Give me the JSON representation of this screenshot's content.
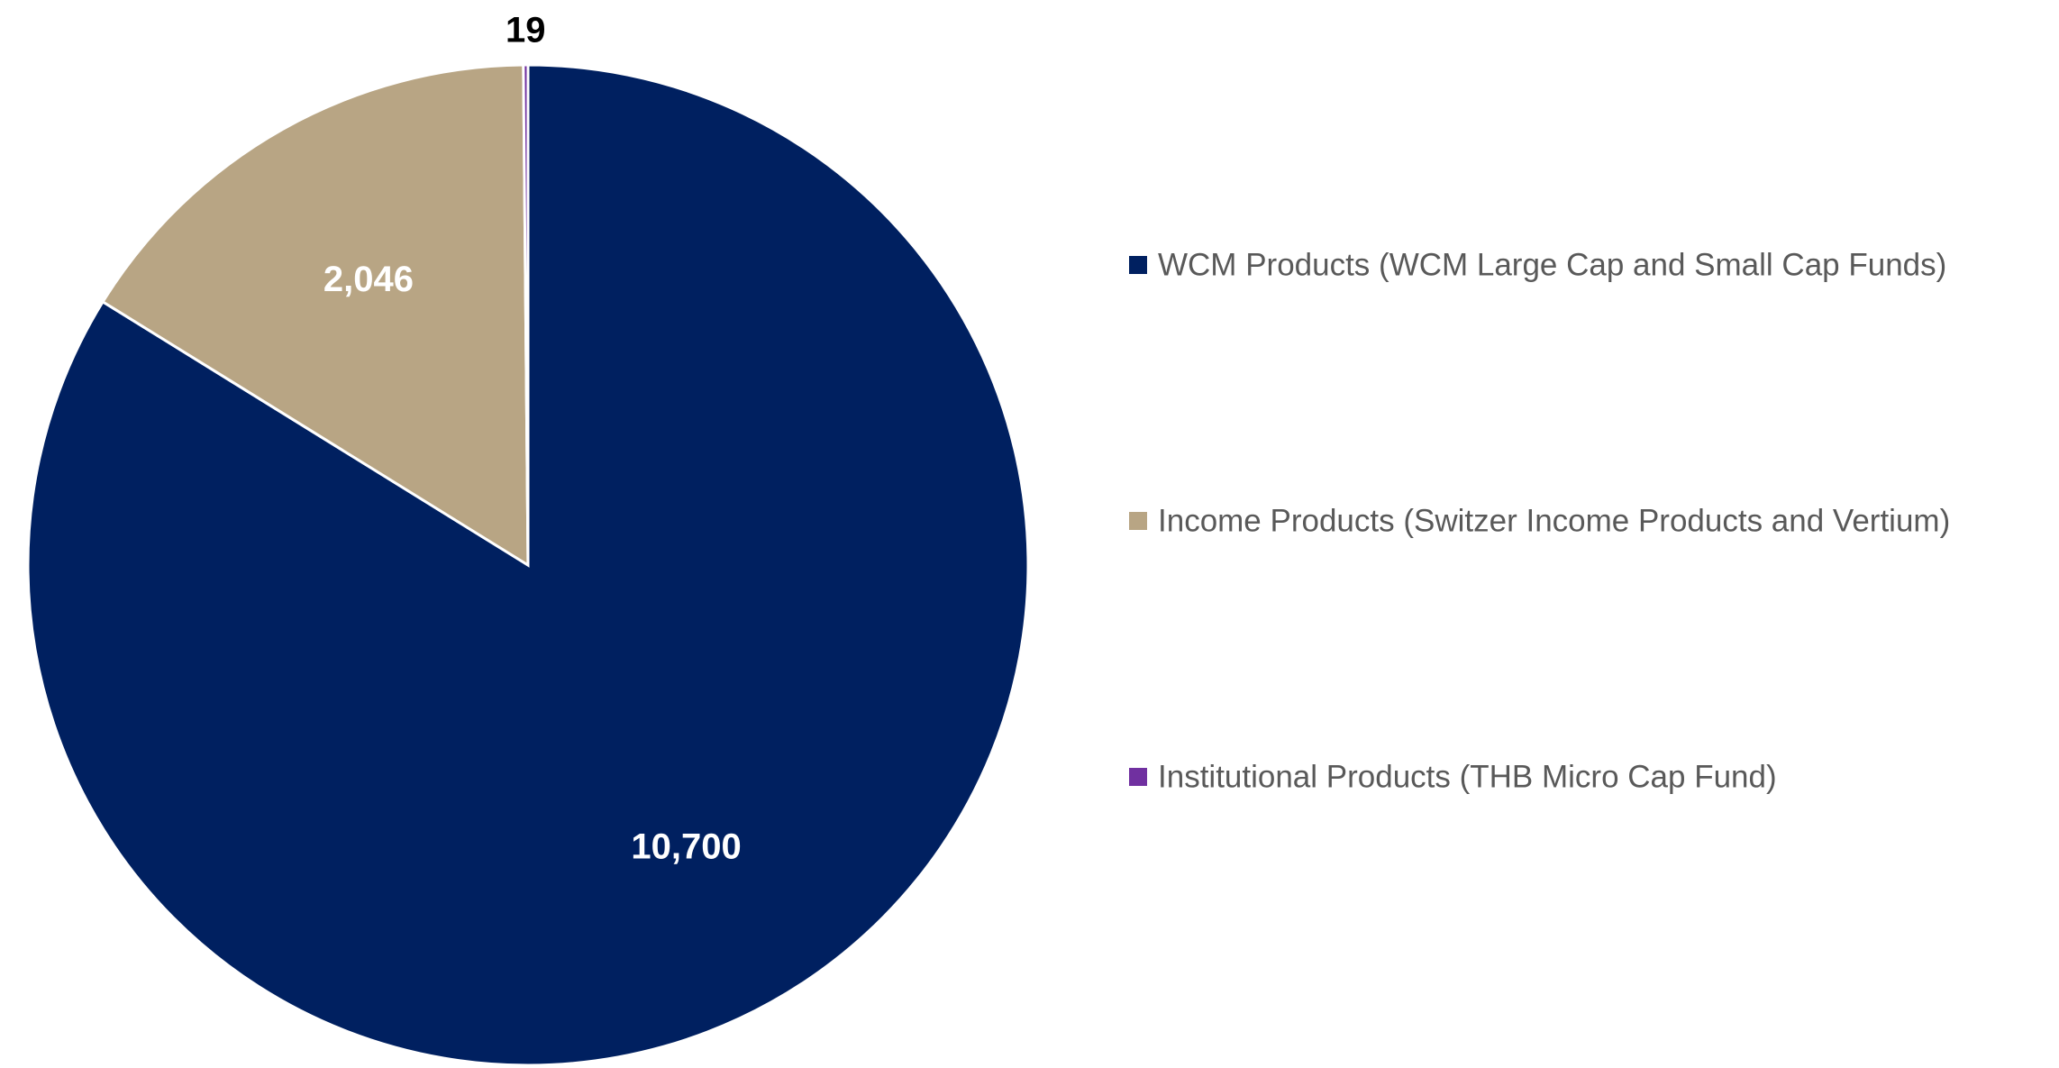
{
  "chart_data": {
    "type": "pie",
    "categories": [
      "WCM Products (WCM Large Cap and Small Cap Funds)",
      "Income Products (Switzer Income Products and Vertium)",
      "Institutional Products (THB Micro Cap Fund)"
    ],
    "values": [
      10700,
      2046,
      19
    ],
    "value_labels": [
      "10,700",
      "2,046",
      "19"
    ],
    "colors": [
      "#002060",
      "#b8a584",
      "#7030a0"
    ],
    "legend": "right"
  }
}
